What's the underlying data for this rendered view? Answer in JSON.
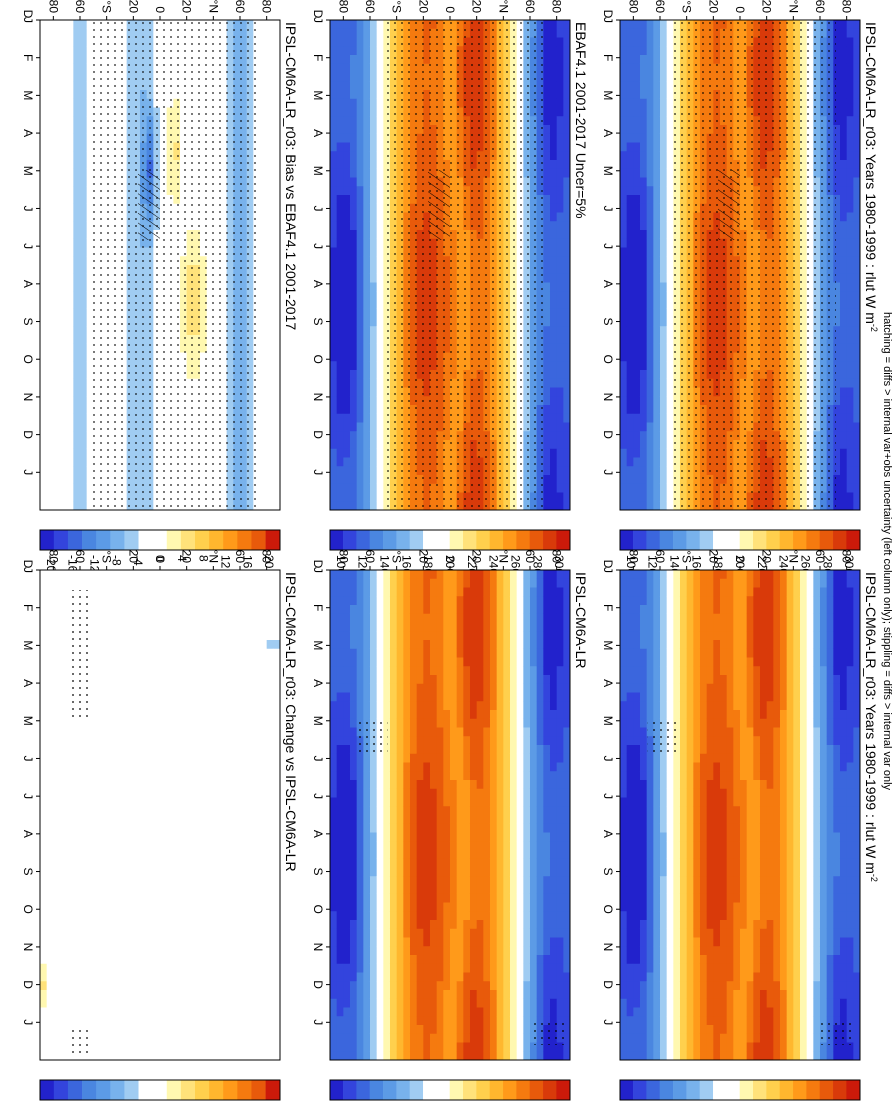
{
  "figure": {
    "footer": "hatching = diffs > internal var+obs uncertainty (left column only); stippling = diffs > internal var only"
  },
  "chart_data": [
    {
      "type": "heatmap",
      "title": "IPSL-CM6A-LR_r03: Years 1980-1999 : rlut W m",
      "title_sup": "-2",
      "x_ticks": [
        "J",
        "F",
        "M",
        "A",
        "M",
        "J",
        "J",
        "A",
        "S",
        "O",
        "N",
        "D",
        "J",
        "D"
      ],
      "y_ticks": [
        "80",
        "60",
        "°N",
        "20",
        "0",
        "20",
        "°S",
        "60",
        "80"
      ],
      "colorbar": {
        "labels": [
          "300",
          "280",
          "260",
          "240",
          "220",
          "200",
          "180",
          "160",
          "140",
          "120",
          "100"
        ],
        "range": [
          90,
          310
        ],
        "units": "W m-2"
      },
      "stippling": true,
      "hatching": true
    },
    {
      "type": "heatmap",
      "title": "IPSL-CM6A-LR_r03: Years 1980-1999 : rlut W m",
      "title_sup": "-2",
      "x_ticks": [
        "J",
        "F",
        "M",
        "A",
        "M",
        "J",
        "J",
        "A",
        "S",
        "O",
        "N",
        "D",
        "J",
        "D"
      ],
      "y_ticks": [
        "80",
        "60",
        "°N",
        "20",
        "0",
        "20",
        "°S",
        "60",
        "80"
      ],
      "colorbar": {
        "labels": [
          "300",
          "280",
          "260",
          "240",
          "220",
          "200",
          "180",
          "160",
          "140",
          "120",
          "100"
        ],
        "range": [
          90,
          310
        ],
        "units": "W m-2"
      },
      "stippling": true,
      "hatching": false
    },
    {
      "type": "heatmap",
      "title": "EBAF4.1 2001-2017 Uncer=5%",
      "x_ticks": [
        "J",
        "F",
        "M",
        "A",
        "M",
        "J",
        "J",
        "A",
        "S",
        "O",
        "N",
        "D",
        "J",
        "D"
      ],
      "y_ticks": [
        "80",
        "60",
        "°N",
        "20",
        "0",
        "20",
        "°S",
        "60",
        "80"
      ],
      "colorbar": {
        "labels": [
          "300",
          "280",
          "260",
          "240",
          "220",
          "200",
          "180",
          "160",
          "140",
          "120",
          "100"
        ],
        "range": [
          90,
          310
        ],
        "units": "W m-2"
      },
      "stippling": true,
      "hatching": true
    },
    {
      "type": "heatmap",
      "title": "IPSL-CM6A-LR",
      "x_ticks": [
        "J",
        "F",
        "M",
        "A",
        "M",
        "J",
        "J",
        "A",
        "S",
        "O",
        "N",
        "D",
        "J",
        "D"
      ],
      "y_ticks": [
        "80",
        "60",
        "°N",
        "20",
        "0",
        "20",
        "°S",
        "60",
        "80"
      ],
      "colorbar": {
        "labels": [
          "300",
          "280",
          "260",
          "240",
          "220",
          "200",
          "180",
          "160",
          "140",
          "120",
          "100"
        ],
        "range": [
          90,
          310
        ],
        "units": "W m-2"
      },
      "stippling": true,
      "hatching": false
    },
    {
      "type": "heatmap",
      "title": "IPSL-CM6A-LR_r03: Bias vs EBAF4.1 2001-2017",
      "x_ticks": [
        "J",
        "F",
        "M",
        "A",
        "M",
        "J",
        "J",
        "A",
        "S",
        "O",
        "N",
        "D",
        "J",
        "D"
      ],
      "y_ticks": [
        "80",
        "60",
        "°N",
        "20",
        "0",
        "20",
        "°S",
        "60",
        "80"
      ],
      "colorbar": {
        "labels": [
          "20",
          "16",
          "12",
          "8",
          "4",
          "0",
          "-4",
          "-8",
          "-12",
          "-16",
          "-20"
        ],
        "range": [
          -22,
          22
        ],
        "units": "W m-2"
      },
      "stippling": true,
      "hatching": true
    },
    {
      "type": "heatmap",
      "title": "IPSL-CM6A-LR_r03: Change vs IPSL-CM6A-LR",
      "x_ticks": [
        "J",
        "F",
        "M",
        "A",
        "M",
        "J",
        "J",
        "A",
        "S",
        "O",
        "N",
        "D",
        "J",
        "D"
      ],
      "y_ticks": [
        "80",
        "60",
        "°N",
        "20",
        "0",
        "20",
        "°S",
        "60",
        "80"
      ],
      "colorbar": {
        "labels": [
          "20",
          "16",
          "12",
          "8",
          "4",
          "0",
          "-4",
          "-8",
          "-12",
          "-16",
          "-20"
        ],
        "range": [
          -22,
          22
        ],
        "units": "W m-2"
      },
      "stippling": true,
      "hatching": false
    }
  ],
  "colors": {
    "abs": [
      "#2222cc",
      "#3344dd",
      "#3b66dd",
      "#4a86e0",
      "#5c9be6",
      "#78b2ec",
      "#a0ccf2",
      "#ffffff",
      "#ffffff",
      "#fff8b0",
      "#ffe27a",
      "#ffd04d",
      "#ffb72e",
      "#ff9a1a",
      "#f57a0f",
      "#e85a0b",
      "#d93a0a",
      "#cc1a0a"
    ],
    "diff": [
      "#2222cc",
      "#3344dd",
      "#3b66dd",
      "#4a86e0",
      "#5c9be6",
      "#78b2ec",
      "#a0ccf2",
      "#ffffff",
      "#ffffff",
      "#fff8b0",
      "#ffe27a",
      "#ffd04d",
      "#ffb72e",
      "#ff9a1a",
      "#f57a0f",
      "#e85a0b",
      "#cc1a0a"
    ]
  }
}
